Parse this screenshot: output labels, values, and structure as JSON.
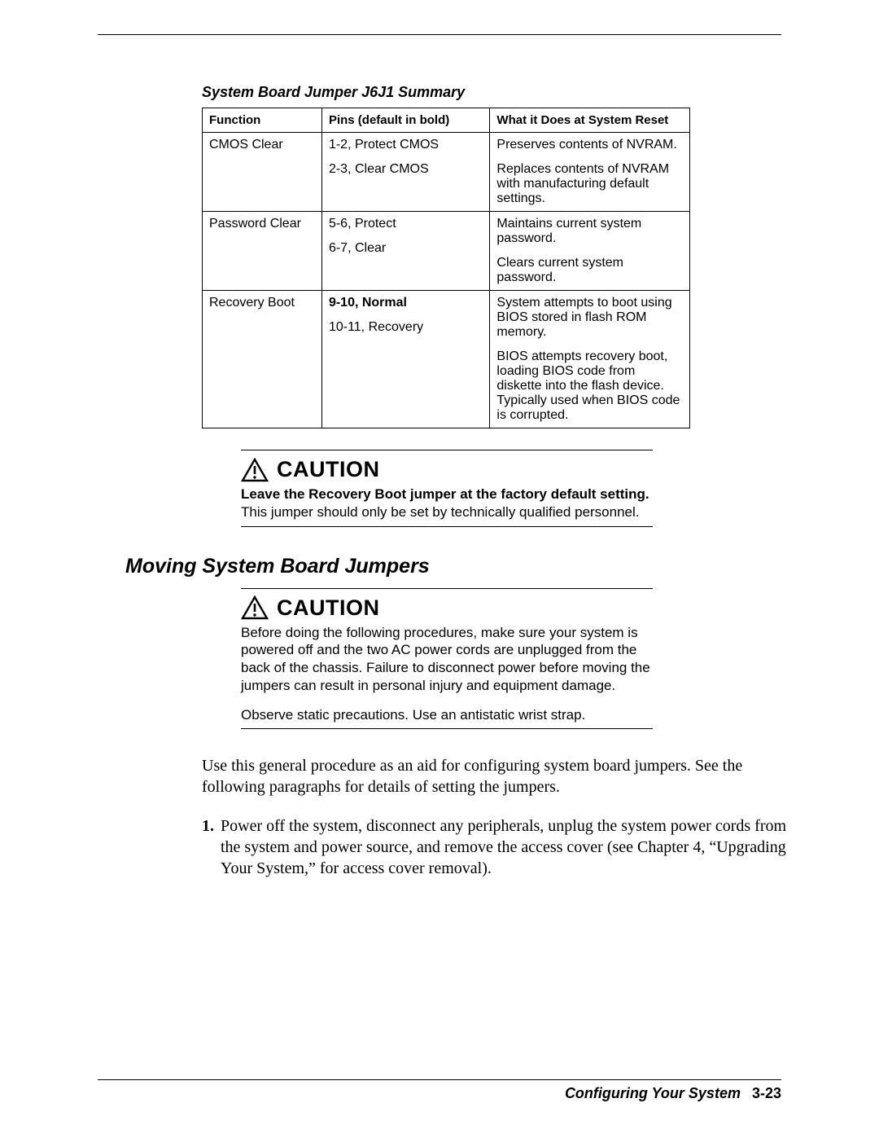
{
  "table": {
    "title": "System Board Jumper J6J1 Summary",
    "headers": {
      "function": "Function",
      "pins": "Pins (default in bold)",
      "desc": "What it Does at System Reset"
    },
    "rows": [
      {
        "function": "CMOS Clear",
        "pins": [
          {
            "text": "1-2, Protect CMOS",
            "bold": false
          },
          {
            "text": "2-3, Clear CMOS",
            "bold": false
          }
        ],
        "desc": [
          "Preserves contents of NVRAM.",
          "Replaces contents of NVRAM with manufacturing default settings."
        ]
      },
      {
        "function": "Password Clear",
        "pins": [
          {
            "text": "5-6, Protect",
            "bold": false
          },
          {
            "text": "6-7, Clear",
            "bold": false
          }
        ],
        "desc": [
          "Maintains current system password.",
          "Clears current system password."
        ]
      },
      {
        "function": "Recovery Boot",
        "pins": [
          {
            "text": "9-10, Normal",
            "bold": true
          },
          {
            "text": "10-11, Recovery",
            "bold": false
          }
        ],
        "desc": [
          "System attempts to boot using BIOS stored in flash ROM memory.",
          "BIOS attempts recovery boot, loading BIOS code from diskette into the flash device. Typically used when BIOS code is corrupted."
        ]
      }
    ]
  },
  "caution1": {
    "label": "CAUTION",
    "bold": "Leave the Recovery Boot jumper at the factory default setting.",
    "rest": " This jumper should only be set by technically qualified personnel."
  },
  "section_heading": "Moving System Board Jumpers",
  "caution2": {
    "label": "CAUTION",
    "para1": "Before doing the following procedures, make sure your system is powered off and the two AC power cords are unplugged from the back of the chassis. Failure to disconnect power before moving the jumpers can result in personal injury and equipment damage.",
    "para2": "Observe static precautions. Use an antistatic wrist strap."
  },
  "intro_para": "Use this general procedure as an aid for configuring system board jumpers. See the following paragraphs for details of setting the jumpers.",
  "steps": [
    {
      "num": "1.",
      "text": "Power off the system, disconnect any peripherals, unplug the system power cords from the system and power source, and remove the access cover (see Chapter 4, “Upgrading Your System,” for access cover removal)."
    }
  ],
  "footer": {
    "chapter": "Configuring Your System",
    "page": "3-23"
  }
}
